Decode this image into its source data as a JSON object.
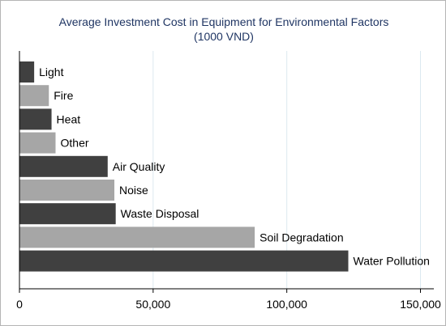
{
  "chart_data": {
    "type": "bar",
    "orientation": "horizontal",
    "title": "Average Investment Cost in Equipment for Environmental Factors",
    "subtitle": "(1000 VND)",
    "xlabel": "",
    "ylabel": "",
    "categories": [
      "Light",
      "Fire",
      "Heat",
      "Other",
      "Air Quality",
      "Noise",
      "Waste Disposal",
      "Soil Degradation",
      "Water Pollution"
    ],
    "values": [
      5500,
      11000,
      12000,
      13500,
      33000,
      35500,
      36000,
      88000,
      123000
    ],
    "bar_colors": [
      "#404040",
      "#a6a6a6",
      "#404040",
      "#a6a6a6",
      "#404040",
      "#a6a6a6",
      "#404040",
      "#a6a6a6",
      "#404040"
    ],
    "xlim": [
      0,
      155000
    ],
    "x_ticks": [
      0,
      50000,
      100000,
      150000
    ],
    "x_tick_labels": [
      "0",
      "50,000",
      "100,000",
      "150,000"
    ],
    "grid": true,
    "grid_color": "#dce9f0"
  }
}
